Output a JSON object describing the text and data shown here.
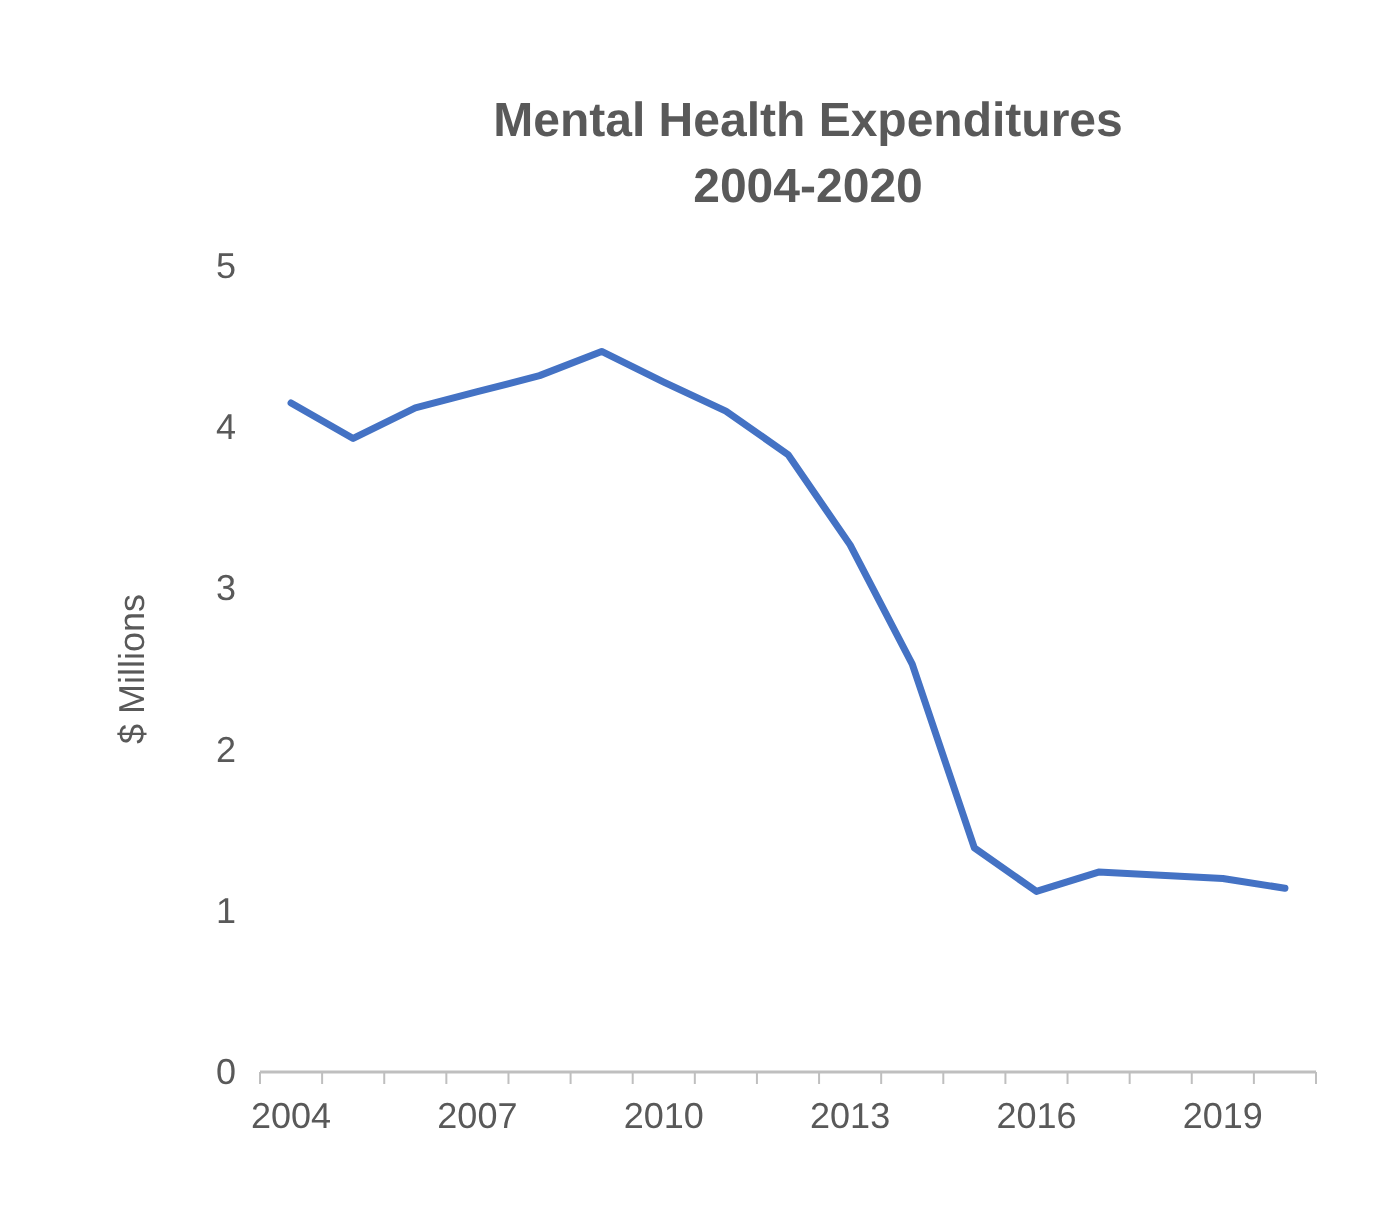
{
  "chart_data": {
    "type": "line",
    "title": "Mental Health Expenditures 2004-2020",
    "ylabel": "$ Millions",
    "categories": [
      "2004",
      null,
      null,
      "2007",
      null,
      null,
      "2010",
      null,
      null,
      "2013",
      null,
      null,
      "2016",
      null,
      null,
      "2019",
      null
    ],
    "series": [
      {
        "color": "#4472c4",
        "values": [
          4.15,
          3.93,
          4.12,
          4.22,
          4.32,
          4.47,
          4.28,
          4.1,
          3.83,
          3.27,
          2.53,
          1.39,
          1.12,
          1.24,
          1.22,
          1.2,
          1.14
        ]
      }
    ],
    "ylim": [
      0,
      5
    ],
    "yticks": [
      0,
      1,
      2,
      3,
      4,
      5
    ],
    "marker": "none",
    "line_style": "solid"
  }
}
